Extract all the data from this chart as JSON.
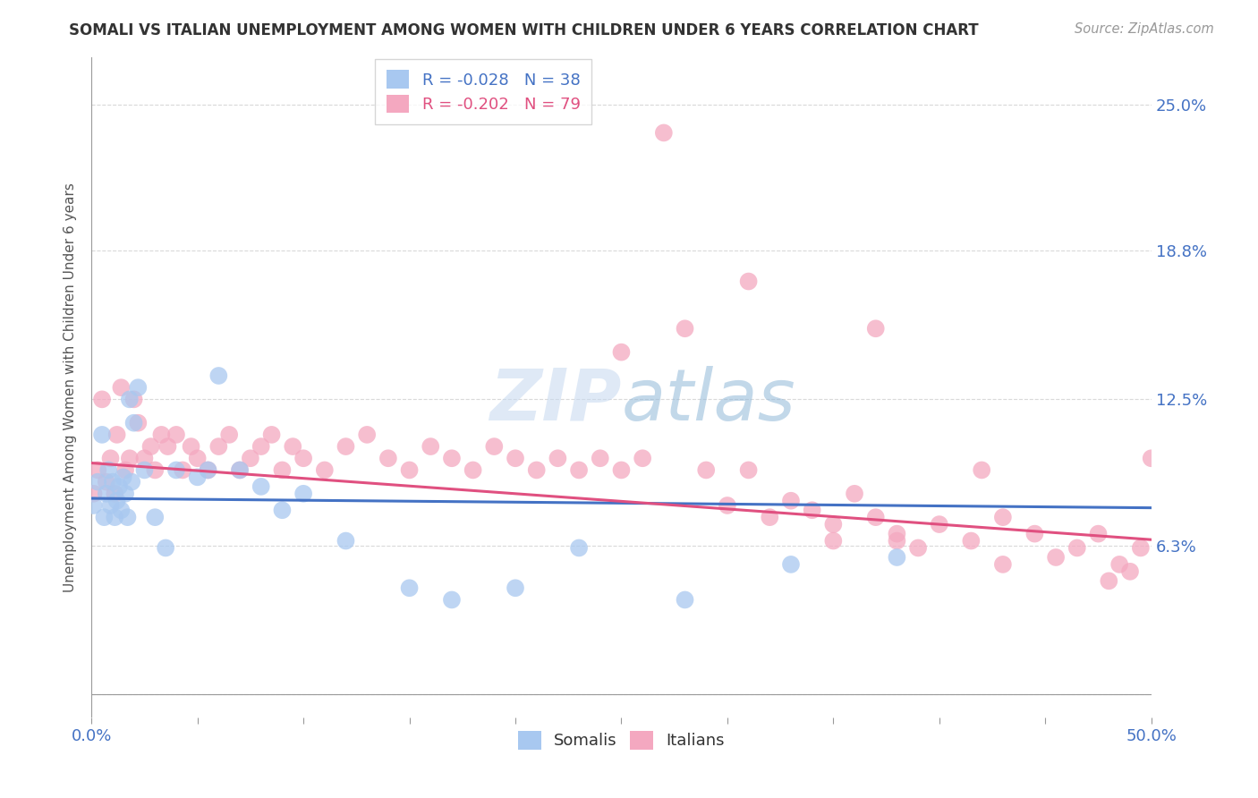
{
  "title": "SOMALI VS ITALIAN UNEMPLOYMENT AMONG WOMEN WITH CHILDREN UNDER 6 YEARS CORRELATION CHART",
  "source": "Source: ZipAtlas.com",
  "ylabel": "Unemployment Among Women with Children Under 6 years",
  "xlim": [
    0.0,
    0.5
  ],
  "ylim": [
    -0.01,
    0.27
  ],
  "ytick_positions": [
    0.0,
    0.063,
    0.125,
    0.188,
    0.25
  ],
  "ytick_labels": [
    "",
    "6.3%",
    "12.5%",
    "18.8%",
    "25.0%"
  ],
  "somali_color": "#a8c8f0",
  "italian_color": "#f4a8c0",
  "somali_line_color": "#4472c4",
  "italian_line_color": "#e05080",
  "somali_R": -0.028,
  "somali_N": 38,
  "italian_R": -0.202,
  "italian_N": 79,
  "background_color": "#ffffff",
  "grid_color": "#d0d0d0",
  "somali_x": [
    0.001,
    0.003,
    0.005,
    0.006,
    0.007,
    0.008,
    0.009,
    0.01,
    0.011,
    0.012,
    0.013,
    0.014,
    0.015,
    0.016,
    0.017,
    0.018,
    0.019,
    0.02,
    0.022,
    0.025,
    0.03,
    0.035,
    0.04,
    0.05,
    0.055,
    0.06,
    0.07,
    0.08,
    0.09,
    0.1,
    0.12,
    0.15,
    0.17,
    0.2,
    0.23,
    0.28,
    0.33,
    0.38
  ],
  "somali_y": [
    0.08,
    0.09,
    0.11,
    0.075,
    0.085,
    0.095,
    0.08,
    0.09,
    0.075,
    0.082,
    0.088,
    0.078,
    0.092,
    0.085,
    0.075,
    0.125,
    0.09,
    0.115,
    0.13,
    0.095,
    0.075,
    0.062,
    0.095,
    0.092,
    0.095,
    0.135,
    0.095,
    0.088,
    0.078,
    0.085,
    0.065,
    0.045,
    0.04,
    0.045,
    0.062,
    0.04,
    0.055,
    0.058
  ],
  "italian_x": [
    0.001,
    0.003,
    0.005,
    0.007,
    0.009,
    0.011,
    0.012,
    0.014,
    0.016,
    0.018,
    0.02,
    0.022,
    0.025,
    0.028,
    0.03,
    0.033,
    0.036,
    0.04,
    0.043,
    0.047,
    0.05,
    0.055,
    0.06,
    0.065,
    0.07,
    0.075,
    0.08,
    0.085,
    0.09,
    0.095,
    0.1,
    0.11,
    0.12,
    0.13,
    0.14,
    0.15,
    0.16,
    0.17,
    0.18,
    0.19,
    0.2,
    0.21,
    0.22,
    0.23,
    0.24,
    0.25,
    0.26,
    0.27,
    0.28,
    0.29,
    0.3,
    0.31,
    0.32,
    0.33,
    0.34,
    0.35,
    0.36,
    0.37,
    0.38,
    0.39,
    0.4,
    0.415,
    0.43,
    0.445,
    0.455,
    0.465,
    0.475,
    0.485,
    0.495,
    0.5,
    0.31,
    0.37,
    0.25,
    0.42,
    0.38,
    0.35,
    0.43,
    0.48,
    0.49
  ],
  "italian_y": [
    0.085,
    0.095,
    0.125,
    0.09,
    0.1,
    0.085,
    0.11,
    0.13,
    0.095,
    0.1,
    0.125,
    0.115,
    0.1,
    0.105,
    0.095,
    0.11,
    0.105,
    0.11,
    0.095,
    0.105,
    0.1,
    0.095,
    0.105,
    0.11,
    0.095,
    0.1,
    0.105,
    0.11,
    0.095,
    0.105,
    0.1,
    0.095,
    0.105,
    0.11,
    0.1,
    0.095,
    0.105,
    0.1,
    0.095,
    0.105,
    0.1,
    0.095,
    0.1,
    0.095,
    0.1,
    0.095,
    0.1,
    0.238,
    0.155,
    0.095,
    0.08,
    0.095,
    0.075,
    0.082,
    0.078,
    0.072,
    0.085,
    0.075,
    0.068,
    0.062,
    0.072,
    0.065,
    0.075,
    0.068,
    0.058,
    0.062,
    0.068,
    0.055,
    0.062,
    0.1,
    0.175,
    0.155,
    0.145,
    0.095,
    0.065,
    0.065,
    0.055,
    0.048,
    0.052
  ]
}
